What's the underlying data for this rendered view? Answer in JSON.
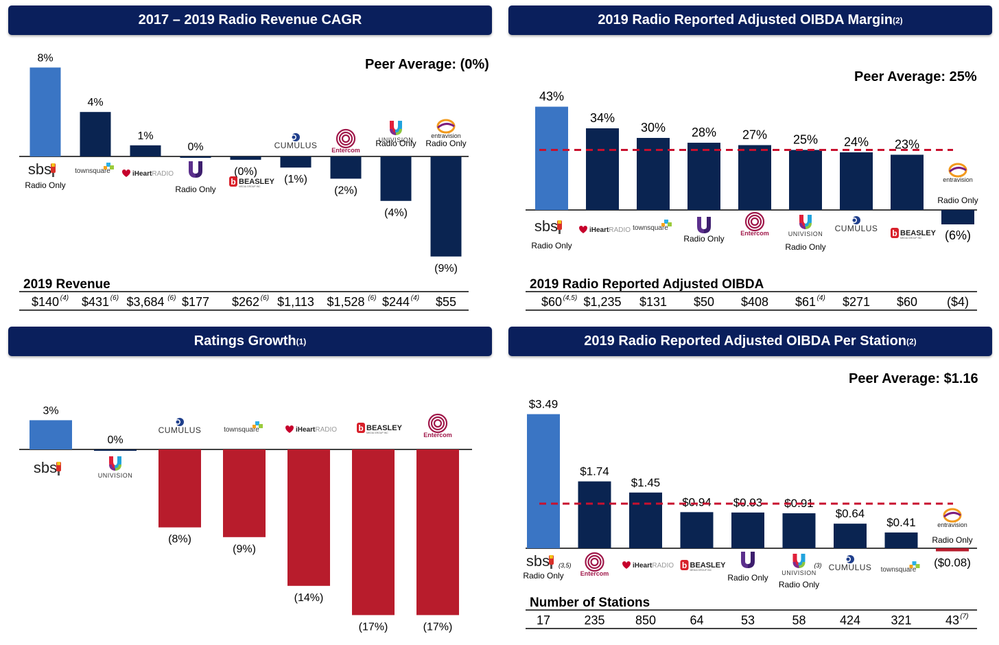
{
  "colors": {
    "header_bg": "#0a1f5c",
    "sbs_bar": "#3a75c4",
    "peer_bar": "#0a2451",
    "negative_bar": "#b81c2c",
    "avg_line": "#c8102e"
  },
  "chart_data": [
    {
      "type": "bar",
      "title": "2017 – 2019 Radio Revenue CAGR",
      "title_sup": "",
      "peer_average": "Peer Average: (0%)",
      "categories": [
        "SBS",
        "Townsquare",
        "iHeartRadio",
        "Univision",
        "Beasley",
        "Cumulus",
        "Entercom",
        "Univision",
        "Entravision"
      ],
      "values": [
        8,
        4,
        1,
        0,
        -0.3,
        -1,
        -2,
        -4,
        -9
      ],
      "labels": [
        "8%",
        "4%",
        "1%",
        "0%",
        "(0%)",
        "(1%)",
        "(2%)",
        "(4%)",
        "(9%)"
      ],
      "logo_notes": [
        "Radio Only",
        "",
        "",
        "Radio Only",
        "",
        "",
        "",
        "Radio Only",
        "Radio Only"
      ],
      "table_title": "2019 Revenue",
      "table_values": [
        "$140",
        "$431",
        "$3,684",
        "$177",
        "$262",
        "$1,113",
        "$1,528",
        "$244",
        "$55"
      ],
      "table_sups": [
        "(4)",
        "(6)",
        "(6)",
        "",
        "(6)",
        "",
        "(6)",
        "(4)",
        ""
      ],
      "ylim": [
        -9,
        8
      ]
    },
    {
      "type": "bar",
      "title": "2019 Radio Reported Adjusted OIBDA Margin",
      "title_sup": "(2)",
      "peer_average": "Peer Average: 25%",
      "average_value": 25,
      "categories": [
        "SBS",
        "iHeartRadio",
        "Townsquare",
        "Univision",
        "Entercom",
        "Univision",
        "Cumulus",
        "Beasley",
        "Entravision"
      ],
      "values": [
        43,
        34,
        30,
        28,
        27,
        25,
        24,
        23,
        -6
      ],
      "labels": [
        "43%",
        "34%",
        "30%",
        "28%",
        "27%",
        "25%",
        "24%",
        "23%",
        "(6%)"
      ],
      "logo_notes": [
        "Radio Only",
        "",
        "",
        "Radio Only",
        "",
        "Radio Only",
        "",
        "",
        "Radio Only"
      ],
      "table_title": "2019 Radio Reported Adjusted OIBDA",
      "table_values": [
        "$60",
        "$1,235",
        "$131",
        "$50",
        "$408",
        "$61",
        "$271",
        "$60",
        "($4)"
      ],
      "table_sups": [
        "(4,5)",
        "",
        "",
        "",
        "",
        "(4)",
        "",
        "",
        ""
      ]
    },
    {
      "type": "bar",
      "title": "Ratings Growth",
      "title_sup": "(1)",
      "categories": [
        "SBS",
        "Univision",
        "Cumulus",
        "Townsquare",
        "iHeartRadio",
        "Beasley",
        "Entercom"
      ],
      "values": [
        3,
        0,
        -8,
        -9,
        -14,
        -17,
        -17
      ],
      "labels": [
        "3%",
        "0%",
        "(8%)",
        "(9%)",
        "(14%)",
        "(17%)",
        "(17%)"
      ]
    },
    {
      "type": "bar",
      "title": "2019 Radio Reported Adjusted OIBDA Per Station",
      "title_sup": "(2)",
      "peer_average": "Peer Average: $1.16",
      "average_value": 1.16,
      "categories": [
        "SBS",
        "Entercom",
        "iHeartRadio",
        "Beasley",
        "Univision",
        "Univision",
        "Cumulus",
        "Townsquare",
        "Entravision"
      ],
      "values": [
        3.49,
        1.74,
        1.45,
        0.94,
        0.93,
        0.91,
        0.64,
        0.41,
        -0.08
      ],
      "labels": [
        "$3.49",
        "$1.74",
        "$1.45",
        "$0.94",
        "$0.93",
        "$0.91",
        "$0.64",
        "$0.41",
        "($0.08)"
      ],
      "logo_notes": [
        "Radio Only",
        "",
        "",
        "",
        "Radio Only",
        "Radio Only",
        "",
        "",
        "Radio Only"
      ],
      "logo_sups": [
        "(3,5)",
        "",
        "",
        "",
        "",
        "(3)",
        "",
        "",
        ""
      ],
      "table_title": "Number of Stations",
      "table_values": [
        "17",
        "235",
        "850",
        "64",
        "53",
        "58",
        "424",
        "321",
        "43"
      ],
      "table_sups": [
        "",
        "",
        "",
        "",
        "",
        "",
        "",
        "",
        "(7)"
      ]
    }
  ],
  "logos": {
    "sbs": "sbs",
    "townsquare": "townsquare",
    "iheart_a": "iHeart",
    "iheart_b": "RADIO",
    "univision": "UNIVISION",
    "beasley": "BEASLEY",
    "beasley_sub": "MEDIA GROUP INC",
    "cumulus": "CUMULUS",
    "entercom": "Entercom",
    "entravision": "entravision"
  }
}
